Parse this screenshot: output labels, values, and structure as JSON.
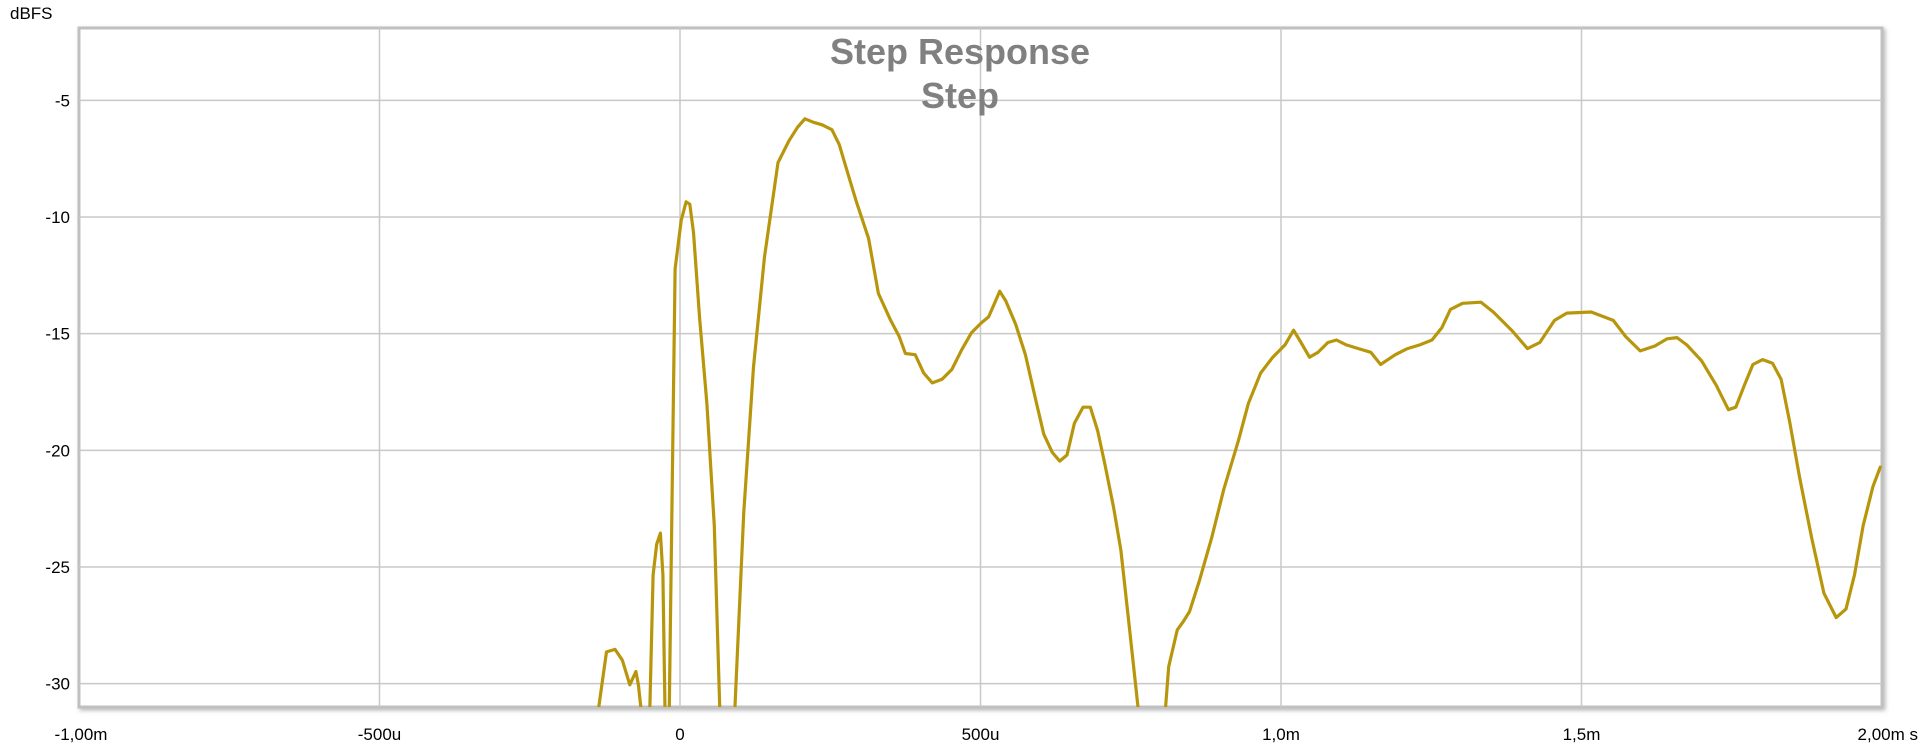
{
  "chart_data": {
    "type": "line",
    "title": "Step Response",
    "subtitle": "Step",
    "ylabel": "dBFS",
    "xlabel": "s",
    "xlim": [
      -1.0,
      2.0
    ],
    "ylim": [
      -31.0,
      -1.9
    ],
    "x_unit": "ms",
    "grid": true,
    "line_color": "#b8960c",
    "x_ticks": [
      {
        "value": -1.0,
        "label": "-1,00m"
      },
      {
        "value": -0.5,
        "label": "-500u"
      },
      {
        "value": 0.0,
        "label": "0"
      },
      {
        "value": 0.5,
        "label": "500u"
      },
      {
        "value": 1.0,
        "label": "1,0m"
      },
      {
        "value": 1.5,
        "label": "1,5m"
      },
      {
        "value": 2.0,
        "label": "2,00m s"
      }
    ],
    "y_ticks": [
      {
        "value": -5,
        "label": "-5"
      },
      {
        "value": -10,
        "label": "-10"
      },
      {
        "value": -15,
        "label": "-15"
      },
      {
        "value": -20,
        "label": "-20"
      },
      {
        "value": -25,
        "label": "-25"
      },
      {
        "value": -30,
        "label": "-30"
      }
    ],
    "series": [
      {
        "segments": [
          [
            [
              -0.1406,
              -32
            ],
            [
              -0.1223,
              -28.64
            ],
            [
              -0.108,
              -28.53
            ],
            [
              -0.0958,
              -29.0
            ],
            [
              -0.0836,
              -30.05
            ],
            [
              -0.0734,
              -29.48
            ],
            [
              -0.0693,
              -30.05
            ],
            [
              -0.0611,
              -32
            ]
          ],
          [
            [
              -0.051,
              -32
            ],
            [
              -0.0448,
              -25.34
            ],
            [
              -0.0387,
              -24.02
            ],
            [
              -0.0326,
              -23.55
            ],
            [
              -0.0285,
              -25.34
            ],
            [
              -0.0245,
              -32
            ],
            [
              -0.0183,
              -32
            ],
            [
              -0.0082,
              -12.23
            ],
            [
              0.002,
              -10.14
            ],
            [
              0.0102,
              -9.35
            ],
            [
              0.0163,
              -9.45
            ],
            [
              0.0224,
              -10.66
            ],
            [
              0.0326,
              -14.33
            ],
            [
              0.0448,
              -18.0
            ],
            [
              0.0571,
              -23.24
            ],
            [
              0.0673,
              -32
            ]
          ],
          [
            [
              0.0897,
              -32
            ],
            [
              0.106,
              -22.71
            ],
            [
              0.1223,
              -16.43
            ],
            [
              0.1406,
              -11.71
            ],
            [
              0.163,
              -7.67
            ],
            [
              0.1814,
              -6.73
            ],
            [
              0.1956,
              -6.15
            ],
            [
              0.2079,
              -5.79
            ],
            [
              0.2221,
              -5.94
            ],
            [
              0.2364,
              -6.05
            ],
            [
              0.2527,
              -6.26
            ],
            [
              0.2649,
              -6.89
            ],
            [
              0.2812,
              -8.3
            ],
            [
              0.2935,
              -9.35
            ],
            [
              0.3138,
              -10.92
            ],
            [
              0.3301,
              -13.28
            ],
            [
              0.3505,
              -14.43
            ],
            [
              0.3648,
              -15.12
            ],
            [
              0.375,
              -15.85
            ],
            [
              0.3913,
              -15.9
            ],
            [
              0.4055,
              -16.69
            ],
            [
              0.4198,
              -17.11
            ],
            [
              0.4361,
              -16.95
            ],
            [
              0.4524,
              -16.53
            ],
            [
              0.4687,
              -15.69
            ],
            [
              0.485,
              -14.96
            ],
            [
              0.5013,
              -14.54
            ],
            [
              0.5135,
              -14.28
            ],
            [
              0.5217,
              -13.8
            ],
            [
              0.5319,
              -13.18
            ],
            [
              0.5421,
              -13.6
            ],
            [
              0.5584,
              -14.59
            ],
            [
              0.5747,
              -15.9
            ],
            [
              0.591,
              -17.74
            ],
            [
              0.6053,
              -19.31
            ],
            [
              0.6195,
              -20.09
            ],
            [
              0.6318,
              -20.46
            ],
            [
              0.644,
              -20.2
            ],
            [
              0.6562,
              -18.84
            ],
            [
              0.6705,
              -18.15
            ],
            [
              0.6827,
              -18.15
            ],
            [
              0.6949,
              -19.15
            ],
            [
              0.7072,
              -20.62
            ],
            [
              0.7214,
              -22.45
            ],
            [
              0.7336,
              -24.29
            ],
            [
              0.7459,
              -27.17
            ],
            [
              0.7581,
              -30.05
            ],
            [
              0.7663,
              -32
            ]
          ],
          [
            [
              0.805,
              -32
            ],
            [
              0.8131,
              -29.27
            ],
            [
              0.8274,
              -27.69
            ],
            [
              0.8376,
              -27.33
            ],
            [
              0.8478,
              -26.91
            ],
            [
              0.8641,
              -25.6
            ],
            [
              0.8845,
              -23.76
            ],
            [
              0.9049,
              -21.67
            ],
            [
              0.9293,
              -19.57
            ],
            [
              0.9456,
              -18.0
            ],
            [
              0.966,
              -16.69
            ],
            [
              0.9864,
              -16.01
            ],
            [
              1.0067,
              -15.48
            ],
            [
              1.021,
              -14.85
            ],
            [
              1.0332,
              -15.38
            ],
            [
              1.0475,
              -16.01
            ],
            [
              1.0618,
              -15.8
            ],
            [
              1.078,
              -15.38
            ],
            [
              1.0923,
              -15.27
            ],
            [
              1.1086,
              -15.48
            ],
            [
              1.129,
              -15.64
            ],
            [
              1.1494,
              -15.8
            ],
            [
              1.1657,
              -16.32
            ],
            [
              1.1901,
              -15.9
            ],
            [
              1.2105,
              -15.64
            ],
            [
              1.2309,
              -15.48
            ],
            [
              1.2513,
              -15.27
            ],
            [
              1.2676,
              -14.75
            ],
            [
              1.2819,
              -13.96
            ],
            [
              1.3022,
              -13.7
            ],
            [
              1.3328,
              -13.65
            ],
            [
              1.3532,
              -14.07
            ],
            [
              1.3837,
              -14.85
            ],
            [
              1.4102,
              -15.64
            ],
            [
              1.4306,
              -15.38
            ],
            [
              1.4551,
              -14.43
            ],
            [
              1.4755,
              -14.12
            ],
            [
              1.5162,
              -14.07
            ],
            [
              1.5529,
              -14.43
            ],
            [
              1.5733,
              -15.12
            ],
            [
              1.5977,
              -15.74
            ],
            [
              1.6222,
              -15.53
            ],
            [
              1.6426,
              -15.22
            ],
            [
              1.6589,
              -15.17
            ],
            [
              1.6752,
              -15.48
            ],
            [
              1.6996,
              -16.16
            ],
            [
              1.7241,
              -17.21
            ],
            [
              1.7445,
              -18.26
            ],
            [
              1.7567,
              -18.15
            ],
            [
              1.771,
              -17.21
            ],
            [
              1.7852,
              -16.32
            ],
            [
              1.8015,
              -16.11
            ],
            [
              1.8178,
              -16.27
            ],
            [
              1.8321,
              -16.95
            ],
            [
              1.8464,
              -18.78
            ],
            [
              1.8627,
              -21.14
            ],
            [
              1.883,
              -23.76
            ],
            [
              1.9034,
              -26.12
            ],
            [
              1.9238,
              -27.17
            ],
            [
              1.9401,
              -26.8
            ],
            [
              1.9543,
              -25.34
            ],
            [
              1.9686,
              -23.24
            ],
            [
              1.9849,
              -21.56
            ],
            [
              1.9971,
              -20.72
            ]
          ]
        ]
      }
    ]
  }
}
